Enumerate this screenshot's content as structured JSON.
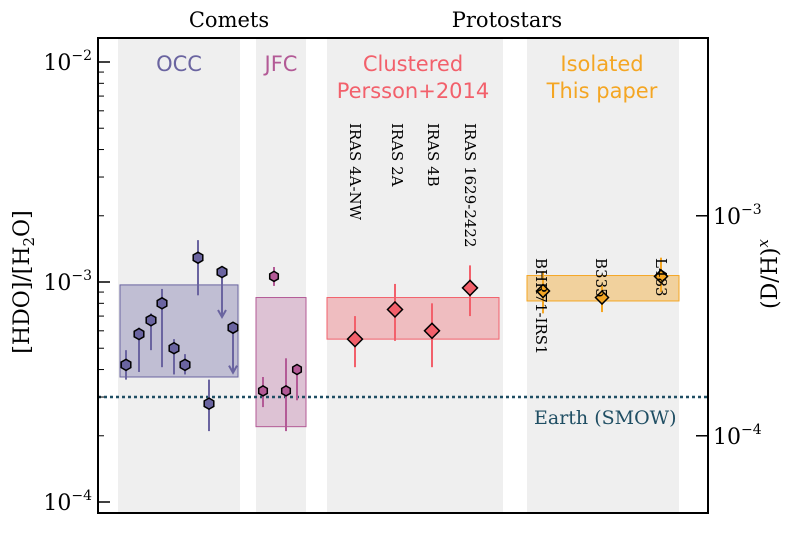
{
  "chart_data": {
    "type": "scatter",
    "y_scale": "log",
    "ylim": [
      8.5e-05,
      0.013
    ],
    "ylabel": "[HDO]/[H2O]",
    "ylabel_right": "(D/H)x",
    "yticks": [
      {
        "value": 0.01,
        "label": "10",
        "exp": "−2"
      },
      {
        "value": 0.001,
        "label": "10",
        "exp": "−3"
      },
      {
        "value": 0.0001,
        "label": "10",
        "exp": "−4"
      }
    ],
    "yticks_right": [
      {
        "value": 0.002,
        "label": "10",
        "exp": "−3"
      },
      {
        "value": 0.0002,
        "label": "10",
        "exp": "−4"
      }
    ],
    "top_headers": [
      "Comets",
      "Protostars"
    ],
    "groups": [
      {
        "name": "OCC",
        "color": "#6a64a0",
        "range_low": 0.00037,
        "range_high": 0.00097
      },
      {
        "name": "JFC",
        "color": "#b35a96",
        "range_low": 0.00022,
        "range_high": 0.00085
      },
      {
        "name_lines": [
          "Clustered",
          "Persson+2014"
        ],
        "color": "#f2606b",
        "range_low": 0.00055,
        "range_high": 0.00085
      },
      {
        "name_lines": [
          "Isolated",
          "This paper"
        ],
        "color": "#f4a623",
        "range_low": 0.00082,
        "range_high": 0.00107
      }
    ],
    "occ_points": [
      {
        "y": 0.00042,
        "low": 0.00036,
        "high": 0.00049
      },
      {
        "y": 0.00058,
        "low": 0.00039,
        "high": 0.00062
      },
      {
        "y": 0.00067,
        "low": 0.00049,
        "high": 0.00072
      },
      {
        "y": 0.0008,
        "low": 0.00041,
        "high": 0.00093
      },
      {
        "y": 0.0005,
        "low": 0.00038,
        "high": 0.00055
      },
      {
        "y": 0.00042,
        "low": 0.00038,
        "high": 0.00047
      },
      {
        "y": 0.00129,
        "low": 0.00087,
        "high": 0.00155
      },
      {
        "y": 0.00028,
        "low": 0.00021,
        "high": 0.00036
      },
      {
        "y": 0.00111,
        "upper_limit": true
      },
      {
        "y": 0.00062,
        "upper_limit": true
      }
    ],
    "jfc_points": [
      {
        "y": 0.00032,
        "low": 0.00027,
        "high": 0.00037
      },
      {
        "y": 0.00106,
        "low": 0.00096,
        "high": 0.00117
      },
      {
        "y": 0.00032,
        "low": 0.00021,
        "high": 0.00045
      },
      {
        "y": 0.0004,
        "low": 0.00029,
        "high": 0.00042
      }
    ],
    "clustered_points": [
      {
        "source": "IRAS 4A-NW",
        "y": 0.00055,
        "low": 0.00041,
        "high": 0.0007
      },
      {
        "source": "IRAS 2A",
        "y": 0.00075,
        "low": 0.00054,
        "high": 0.00098
      },
      {
        "source": "IRAS 4B",
        "y": 0.0006,
        "low": 0.00041,
        "high": 0.0008
      },
      {
        "source": "IRAS 1629-2422",
        "y": 0.00094,
        "low": 0.0007,
        "high": 0.00119
      }
    ],
    "isolated_points": [
      {
        "source": "BHR71-IRS1",
        "y": 0.00091,
        "low": 0.00072,
        "high": 0.00112
      },
      {
        "source": "B335",
        "y": 0.00085,
        "low": 0.00073,
        "high": 0.00096
      },
      {
        "source": "L483",
        "y": 0.00106,
        "low": 0.0009,
        "high": 0.00129
      }
    ],
    "reference_line": {
      "label": "Earth (SMOW)",
      "y": 0.0003,
      "color": "#1f4e63"
    }
  }
}
